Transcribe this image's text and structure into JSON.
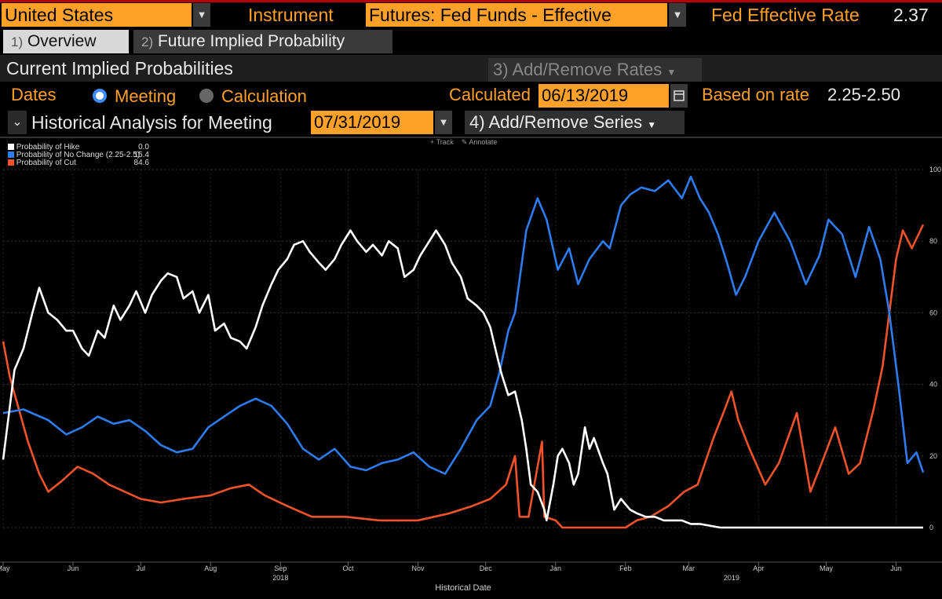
{
  "header": {
    "country": "United States",
    "instrument_label": "Instrument",
    "instrument_value": "Futures: Fed Funds - Effective",
    "rate_label": "Fed Effective Rate",
    "rate_value": "2.37",
    "dropdown_arrow": "▼"
  },
  "tabs": [
    {
      "number": "1)",
      "label": "Overview"
    },
    {
      "number": "2)",
      "label": "Future Implied Probability"
    }
  ],
  "section": {
    "title": "Current Implied Probabilities",
    "add_remove_rates": "3) Add/Remove Rates",
    "dates_label": "Dates",
    "radio_meeting": "Meeting",
    "radio_calculation": "Calculation",
    "calculated_label": "Calculated",
    "calculated_value": "06/13/2019",
    "based_on_label": "Based on rate",
    "based_on_value": "2.25-2.50",
    "historical_label": "Historical Analysis for Meeting",
    "meeting_date": "07/31/2019",
    "add_remove_series": "4) Add/Remove Series"
  },
  "toolbar": {
    "track": "Track",
    "annotate": "Annotate"
  },
  "colors": {
    "hike": "#ffffff",
    "nochange": "#2d7cf0",
    "cut": "#f0532a",
    "accent": "#ffa028"
  },
  "chart_data": {
    "type": "line",
    "xlabel": "Historical Date",
    "ylim": [
      0,
      100
    ],
    "yticks": [
      0,
      20,
      40,
      60,
      80,
      100
    ],
    "x_range": [
      "2018-05-01",
      "2019-06-13"
    ],
    "month_ticks": [
      {
        "label": "May",
        "date": "2018-05-01"
      },
      {
        "label": "Jun",
        "date": "2018-06-01"
      },
      {
        "label": "Jul",
        "date": "2018-07-01"
      },
      {
        "label": "Aug",
        "date": "2018-08-01"
      },
      {
        "label": "Sep",
        "date": "2018-09-01"
      },
      {
        "label": "Oct",
        "date": "2018-10-01"
      },
      {
        "label": "Nov",
        "date": "2018-11-01"
      },
      {
        "label": "Dec",
        "date": "2018-12-01"
      },
      {
        "label": "Jan",
        "date": "2019-01-01"
      },
      {
        "label": "Feb",
        "date": "2019-02-01"
      },
      {
        "label": "Mar",
        "date": "2019-03-01"
      },
      {
        "label": "Apr",
        "date": "2019-04-01"
      },
      {
        "label": "May",
        "date": "2019-05-01"
      },
      {
        "label": "Jun",
        "date": "2019-06-01"
      }
    ],
    "year_labels": [
      {
        "label": "2018",
        "date": "2018-09-01"
      },
      {
        "label": "2019",
        "date": "2019-03-20"
      }
    ],
    "series": [
      {
        "name": "Probability of Hike",
        "last": "0.0",
        "key": "hike",
        "points": [
          [
            "2018-05-01",
            19
          ],
          [
            "2018-05-06",
            44
          ],
          [
            "2018-05-10",
            50
          ],
          [
            "2018-05-14",
            60
          ],
          [
            "2018-05-17",
            67
          ],
          [
            "2018-05-21",
            60
          ],
          [
            "2018-05-25",
            58
          ],
          [
            "2018-05-29",
            55
          ],
          [
            "2018-06-01",
            55
          ],
          [
            "2018-06-05",
            50
          ],
          [
            "2018-06-08",
            48
          ],
          [
            "2018-06-12",
            55
          ],
          [
            "2018-06-15",
            53
          ],
          [
            "2018-06-19",
            62
          ],
          [
            "2018-06-22",
            58
          ],
          [
            "2018-06-26",
            62
          ],
          [
            "2018-06-29",
            66
          ],
          [
            "2018-07-03",
            60
          ],
          [
            "2018-07-06",
            65
          ],
          [
            "2018-07-10",
            69
          ],
          [
            "2018-07-13",
            71
          ],
          [
            "2018-07-17",
            70
          ],
          [
            "2018-07-20",
            64
          ],
          [
            "2018-07-24",
            66
          ],
          [
            "2018-07-27",
            60
          ],
          [
            "2018-07-31",
            65
          ],
          [
            "2018-08-03",
            55
          ],
          [
            "2018-08-07",
            57
          ],
          [
            "2018-08-10",
            53
          ],
          [
            "2018-08-14",
            52
          ],
          [
            "2018-08-17",
            50
          ],
          [
            "2018-08-21",
            56
          ],
          [
            "2018-08-24",
            62
          ],
          [
            "2018-08-28",
            68
          ],
          [
            "2018-08-31",
            72
          ],
          [
            "2018-09-04",
            75
          ],
          [
            "2018-09-07",
            79
          ],
          [
            "2018-09-11",
            80
          ],
          [
            "2018-09-14",
            77
          ],
          [
            "2018-09-18",
            74
          ],
          [
            "2018-09-21",
            72
          ],
          [
            "2018-09-25",
            75
          ],
          [
            "2018-09-28",
            79
          ],
          [
            "2018-10-02",
            83
          ],
          [
            "2018-10-05",
            80
          ],
          [
            "2018-10-09",
            77
          ],
          [
            "2018-10-12",
            79
          ],
          [
            "2018-10-16",
            76
          ],
          [
            "2018-10-19",
            80
          ],
          [
            "2018-10-23",
            78
          ],
          [
            "2018-10-26",
            70
          ],
          [
            "2018-10-30",
            72
          ],
          [
            "2018-11-02",
            76
          ],
          [
            "2018-11-06",
            80
          ],
          [
            "2018-11-09",
            83
          ],
          [
            "2018-11-13",
            79
          ],
          [
            "2018-11-16",
            74
          ],
          [
            "2018-11-20",
            70
          ],
          [
            "2018-11-23",
            64
          ],
          [
            "2018-11-27",
            62
          ],
          [
            "2018-11-30",
            60
          ],
          [
            "2018-12-03",
            56
          ],
          [
            "2018-12-06",
            48
          ],
          [
            "2018-12-08",
            43
          ],
          [
            "2018-12-11",
            37
          ],
          [
            "2018-12-14",
            38
          ],
          [
            "2018-12-17",
            30
          ],
          [
            "2018-12-19",
            22
          ],
          [
            "2018-12-21",
            12
          ],
          [
            "2018-12-24",
            10
          ],
          [
            "2018-12-27",
            5
          ],
          [
            "2018-12-28",
            2
          ],
          [
            "2018-12-31",
            12
          ],
          [
            "2019-01-02",
            20
          ],
          [
            "2019-01-04",
            22
          ],
          [
            "2019-01-07",
            18
          ],
          [
            "2019-01-09",
            12
          ],
          [
            "2019-01-11",
            15
          ],
          [
            "2019-01-14",
            28
          ],
          [
            "2019-01-16",
            22
          ],
          [
            "2019-01-18",
            25
          ],
          [
            "2019-01-22",
            18
          ],
          [
            "2019-01-24",
            15
          ],
          [
            "2019-01-27",
            5
          ],
          [
            "2019-01-30",
            8
          ],
          [
            "2019-02-03",
            5
          ],
          [
            "2019-02-06",
            4
          ],
          [
            "2019-02-10",
            3
          ],
          [
            "2019-02-14",
            3
          ],
          [
            "2019-02-18",
            2
          ],
          [
            "2019-02-22",
            2
          ],
          [
            "2019-02-26",
            2
          ],
          [
            "2019-03-02",
            1
          ],
          [
            "2019-03-06",
            1
          ],
          [
            "2019-03-15",
            0
          ],
          [
            "2019-04-15",
            0
          ],
          [
            "2019-06-13",
            0
          ]
        ]
      },
      {
        "name": "Probability of No Change (2.25-2.5)",
        "last": "15.4",
        "key": "nochange",
        "points": [
          [
            "2018-05-01",
            32
          ],
          [
            "2018-05-10",
            33
          ],
          [
            "2018-05-21",
            30
          ],
          [
            "2018-05-29",
            26
          ],
          [
            "2018-06-05",
            28
          ],
          [
            "2018-06-12",
            31
          ],
          [
            "2018-06-19",
            29
          ],
          [
            "2018-06-26",
            30
          ],
          [
            "2018-07-03",
            27
          ],
          [
            "2018-07-10",
            23
          ],
          [
            "2018-07-17",
            21
          ],
          [
            "2018-07-24",
            22
          ],
          [
            "2018-07-31",
            28
          ],
          [
            "2018-08-07",
            31
          ],
          [
            "2018-08-14",
            34
          ],
          [
            "2018-08-21",
            36
          ],
          [
            "2018-08-28",
            34
          ],
          [
            "2018-09-04",
            29
          ],
          [
            "2018-09-11",
            22
          ],
          [
            "2018-09-18",
            19
          ],
          [
            "2018-09-25",
            22
          ],
          [
            "2018-10-02",
            17
          ],
          [
            "2018-10-09",
            16
          ],
          [
            "2018-10-16",
            18
          ],
          [
            "2018-10-23",
            19
          ],
          [
            "2018-10-30",
            21
          ],
          [
            "2018-11-06",
            17
          ],
          [
            "2018-11-13",
            15
          ],
          [
            "2018-11-20",
            22
          ],
          [
            "2018-11-27",
            30
          ],
          [
            "2018-12-03",
            34
          ],
          [
            "2018-12-07",
            43
          ],
          [
            "2018-12-11",
            55
          ],
          [
            "2018-12-14",
            60
          ],
          [
            "2018-12-19",
            83
          ],
          [
            "2018-12-24",
            92
          ],
          [
            "2018-12-28",
            86
          ],
          [
            "2019-01-02",
            72
          ],
          [
            "2019-01-07",
            78
          ],
          [
            "2019-01-11",
            68
          ],
          [
            "2019-01-16",
            75
          ],
          [
            "2019-01-22",
            80
          ],
          [
            "2019-01-25",
            78
          ],
          [
            "2019-01-30",
            90
          ],
          [
            "2019-02-03",
            93
          ],
          [
            "2019-02-08",
            95
          ],
          [
            "2019-02-14",
            94
          ],
          [
            "2019-02-20",
            97
          ],
          [
            "2019-02-26",
            92
          ],
          [
            "2019-03-02",
            98
          ],
          [
            "2019-03-06",
            92
          ],
          [
            "2019-03-10",
            88
          ],
          [
            "2019-03-14",
            82
          ],
          [
            "2019-03-18",
            74
          ],
          [
            "2019-03-22",
            65
          ],
          [
            "2019-03-26",
            70
          ],
          [
            "2019-04-01",
            80
          ],
          [
            "2019-04-08",
            88
          ],
          [
            "2019-04-15",
            80
          ],
          [
            "2019-04-22",
            68
          ],
          [
            "2019-04-28",
            76
          ],
          [
            "2019-05-02",
            86
          ],
          [
            "2019-05-08",
            82
          ],
          [
            "2019-05-14",
            70
          ],
          [
            "2019-05-20",
            84
          ],
          [
            "2019-05-25",
            75
          ],
          [
            "2019-05-29",
            60
          ],
          [
            "2019-06-02",
            40
          ],
          [
            "2019-06-06",
            18
          ],
          [
            "2019-06-10",
            21
          ],
          [
            "2019-06-13",
            15.4
          ]
        ]
      },
      {
        "name": "Probability of Cut",
        "last": "84.6",
        "key": "cut",
        "points": [
          [
            "2018-05-01",
            52
          ],
          [
            "2018-05-04",
            42
          ],
          [
            "2018-05-08",
            33
          ],
          [
            "2018-05-12",
            24
          ],
          [
            "2018-05-17",
            15
          ],
          [
            "2018-05-21",
            10
          ],
          [
            "2018-05-27",
            13
          ],
          [
            "2018-06-03",
            17
          ],
          [
            "2018-06-10",
            15
          ],
          [
            "2018-06-17",
            12
          ],
          [
            "2018-06-24",
            10
          ],
          [
            "2018-07-01",
            8
          ],
          [
            "2018-07-10",
            7
          ],
          [
            "2018-07-20",
            8
          ],
          [
            "2018-08-01",
            9
          ],
          [
            "2018-08-10",
            11
          ],
          [
            "2018-08-18",
            12
          ],
          [
            "2018-08-25",
            9
          ],
          [
            "2018-09-04",
            6
          ],
          [
            "2018-09-15",
            3
          ],
          [
            "2018-09-30",
            3
          ],
          [
            "2018-10-15",
            2
          ],
          [
            "2018-11-01",
            2
          ],
          [
            "2018-11-15",
            4
          ],
          [
            "2018-11-25",
            6
          ],
          [
            "2018-12-03",
            8
          ],
          [
            "2018-12-10",
            12
          ],
          [
            "2018-12-14",
            20
          ],
          [
            "2018-12-16",
            3
          ],
          [
            "2018-12-20",
            3
          ],
          [
            "2018-12-26",
            24
          ],
          [
            "2018-12-27",
            3
          ],
          [
            "2019-01-01",
            2
          ],
          [
            "2019-01-04",
            0
          ],
          [
            "2019-02-01",
            0
          ],
          [
            "2019-02-06",
            2
          ],
          [
            "2019-02-12",
            3
          ],
          [
            "2019-02-20",
            6
          ],
          [
            "2019-02-27",
            10
          ],
          [
            "2019-03-05",
            12
          ],
          [
            "2019-03-12",
            25
          ],
          [
            "2019-03-17",
            33
          ],
          [
            "2019-03-20",
            38
          ],
          [
            "2019-03-23",
            30
          ],
          [
            "2019-03-28",
            22
          ],
          [
            "2019-04-04",
            12
          ],
          [
            "2019-04-10",
            18
          ],
          [
            "2019-04-18",
            32
          ],
          [
            "2019-04-24",
            10
          ],
          [
            "2019-04-29",
            18
          ],
          [
            "2019-05-05",
            28
          ],
          [
            "2019-05-11",
            15
          ],
          [
            "2019-05-16",
            18
          ],
          [
            "2019-05-22",
            33
          ],
          [
            "2019-05-26",
            45
          ],
          [
            "2019-05-29",
            60
          ],
          [
            "2019-06-01",
            75
          ],
          [
            "2019-06-04",
            83
          ],
          [
            "2019-06-08",
            78
          ],
          [
            "2019-06-13",
            84.6
          ]
        ]
      }
    ]
  }
}
